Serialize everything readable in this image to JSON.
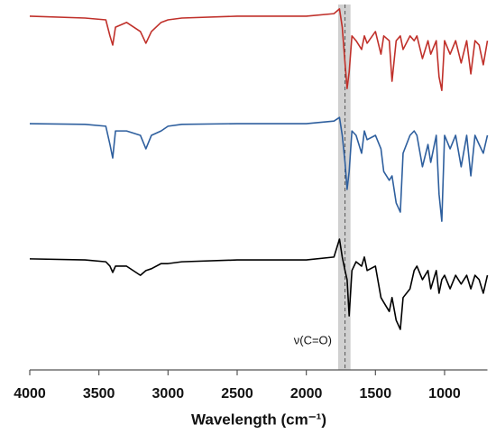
{
  "chart_data": {
    "type": "line",
    "xlabel": "Wavelength (cm⁻¹)",
    "annotation": "ν(C=O)",
    "highlight": [
      1770,
      1680
    ],
    "marker_line": 1720,
    "xlim": [
      4000,
      690
    ],
    "xticks": [
      4000,
      3500,
      3000,
      2500,
      2000,
      1500,
      1000
    ],
    "ylim": [
      0,
      100
    ],
    "x": [
      4000,
      3600,
      3450,
      3420,
      3400,
      3380,
      3300,
      3200,
      3160,
      3120,
      3050,
      3000,
      2900,
      2500,
      2000,
      1800,
      1760,
      1740,
      1720,
      1705,
      1690,
      1670,
      1640,
      1600,
      1580,
      1560,
      1500,
      1460,
      1440,
      1400,
      1380,
      1350,
      1320,
      1300,
      1250,
      1220,
      1200,
      1160,
      1120,
      1100,
      1060,
      1040,
      1020,
      1000,
      960,
      920,
      880,
      840,
      810,
      780,
      750,
      720,
      690
    ],
    "series": [
      {
        "color": "#c0302a",
        "values": [
          96.8,
          96.3,
          95.8,
          91.4,
          88.9,
          93.8,
          95.1,
          92.6,
          89.4,
          92.6,
          95.1,
          95.8,
          96.3,
          96.8,
          96.8,
          97.5,
          98.8,
          93.8,
          84.0,
          77.0,
          81.5,
          91.4,
          90.1,
          87.7,
          91.4,
          89.4,
          92.6,
          86.4,
          91.4,
          90.1,
          79.0,
          90.1,
          91.4,
          87.7,
          91.4,
          90.1,
          91.4,
          85.2,
          90.1,
          86.4,
          90.1,
          80.2,
          76.5,
          90.1,
          86.4,
          90.1,
          84.0,
          90.1,
          81.0,
          90.1,
          88.9,
          83.5,
          90.1
        ]
      },
      {
        "color": "#2e5f9e",
        "values": [
          67.4,
          67.2,
          66.7,
          61.7,
          58.0,
          65.4,
          65.4,
          64.2,
          60.5,
          64.2,
          65.4,
          66.7,
          67.2,
          67.4,
          67.4,
          68.1,
          69.1,
          64.2,
          56.8,
          49.4,
          54.3,
          65.4,
          64.2,
          59.3,
          65.4,
          63.0,
          64.2,
          60.5,
          54.3,
          51.9,
          53.1,
          45.7,
          43.2,
          59.3,
          64.2,
          65.4,
          64.2,
          55.6,
          61.7,
          56.8,
          64.2,
          48.1,
          40.7,
          64.2,
          60.5,
          64.2,
          55.6,
          64.2,
          53.1,
          64.2,
          61.7,
          59.3,
          64.2
        ]
      },
      {
        "color": "#000000",
        "values": [
          30.4,
          30.1,
          29.6,
          28.4,
          26.7,
          28.4,
          28.4,
          25.9,
          27.2,
          27.7,
          29.1,
          29.1,
          29.6,
          30.1,
          30.1,
          30.9,
          35.8,
          30.9,
          27.2,
          24.7,
          14.8,
          27.2,
          29.6,
          28.4,
          30.9,
          27.2,
          28.4,
          19.8,
          18.5,
          16.0,
          19.8,
          13.6,
          11.1,
          19.8,
          22.2,
          27.2,
          28.4,
          24.7,
          27.2,
          22.2,
          27.2,
          21.0,
          24.7,
          25.9,
          22.2,
          25.9,
          23.5,
          25.9,
          22.2,
          25.9,
          24.7,
          21.0,
          25.9
        ]
      }
    ]
  }
}
